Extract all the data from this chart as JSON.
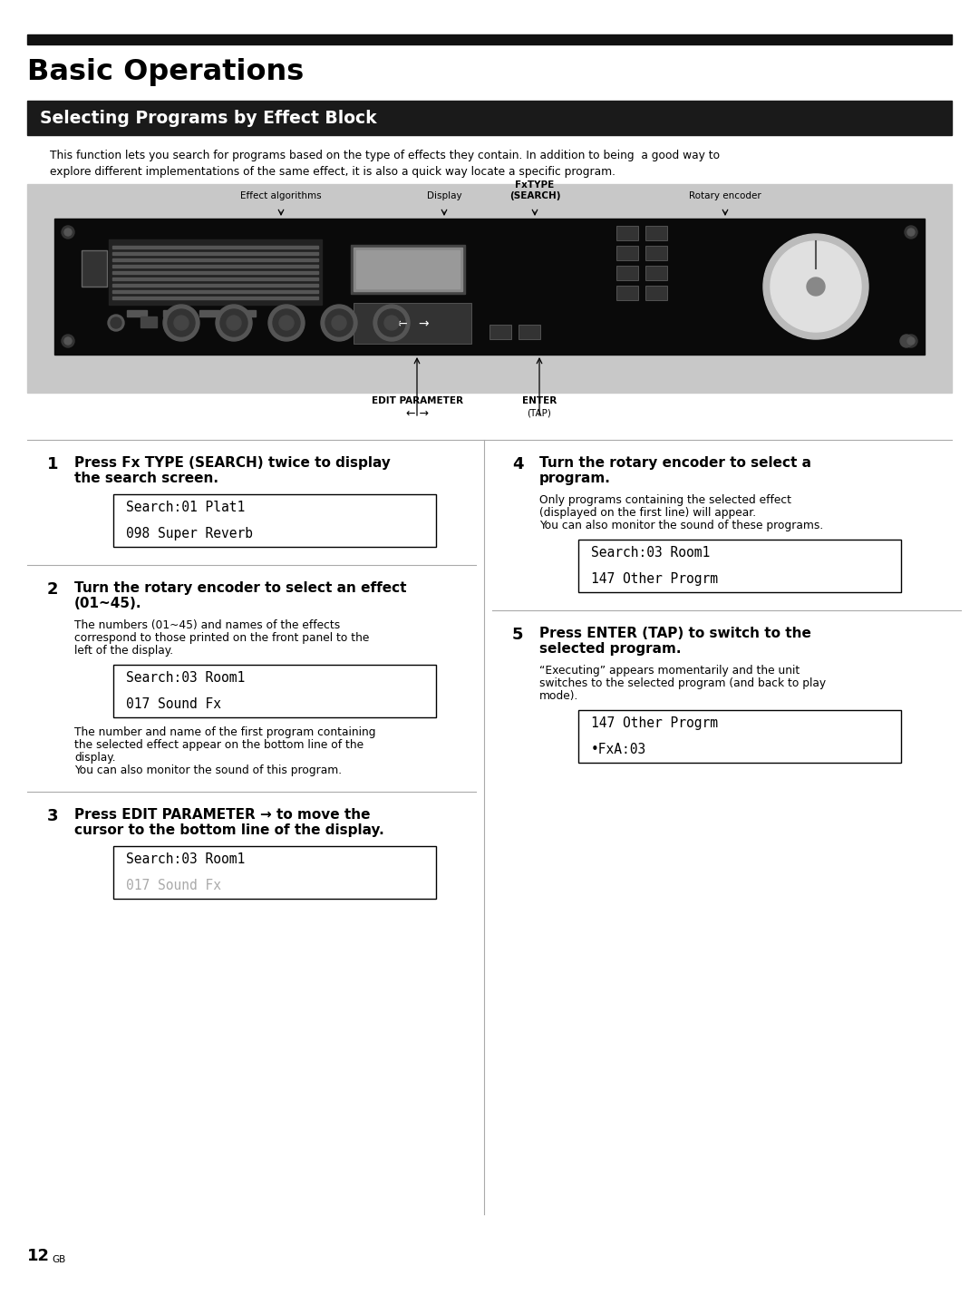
{
  "page_bg": "#ffffff",
  "title_bar_color": "#111111",
  "title_text": "Basic Operations",
  "section_bar_color": "#1a1a1a",
  "section_text": "Selecting Programs by Effect Block",
  "intro_line1": "This function lets you search for programs based on the type of effects they contain. In addition to being  a good way to",
  "intro_line2": "explore different implementations of the same effect, it is also a quick way locate a specific program.",
  "steps": [
    {
      "num": "1",
      "bold": "Press Fx TYPE (SEARCH) twice to display\nthe search screen.",
      "body": "",
      "display": [
        "Search:01 Plat1",
        "098 Super Reverb"
      ],
      "style": "normal",
      "after": ""
    },
    {
      "num": "2",
      "bold": "Turn the rotary encoder to select an effect\n(01~45).",
      "body": "The numbers (01~45) and names of the effects\ncorrespond to those printed on the front panel to the\nleft of the display.",
      "display": [
        "Search:03 Room1",
        "017 Sound Fx"
      ],
      "style": "normal",
      "after": "The number and name of the first program containing\nthe selected effect appear on the bottom line of the\ndisplay.\nYou can also monitor the sound of this program."
    },
    {
      "num": "3",
      "bold": "Press EDIT PARAMETER → to move the\ncursor to the bottom line of the display.",
      "body": "",
      "display": [
        "Search:03 Room1",
        "017 Sound Fx"
      ],
      "style": "dim_bottom",
      "after": ""
    },
    {
      "num": "4",
      "bold": "Turn the rotary encoder to select a\nprogram.",
      "body": "Only programs containing the selected effect\n(displayed on the first line) will appear.\nYou can also monitor the sound of these programs.",
      "display": [
        "Search:03 Room1",
        "147 Other Progrm"
      ],
      "style": "normal",
      "after": ""
    },
    {
      "num": "5",
      "bold": "Press ENTER (TAP) to switch to the\nselected program.",
      "body": "“Executing” appears momentarily and the unit\nswitches to the selected program (and back to play\nmode).",
      "display": [
        "147 Other Progrm",
        "•FxA:03"
      ],
      "style": "normal",
      "after": ""
    }
  ],
  "page_num": "12"
}
